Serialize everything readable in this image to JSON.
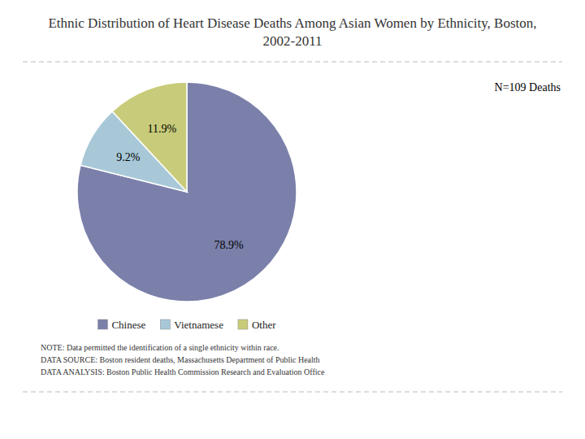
{
  "chart_data": {
    "type": "pie",
    "title": "Ethnic Distribution of Heart Disease Deaths Among Asian Women by Ethnicity, Boston, 2002-2011",
    "categories": [
      "Chinese",
      "Vietnamese",
      "Other"
    ],
    "values": [
      78.9,
      9.2,
      11.9
    ],
    "value_labels": [
      "78.9%",
      "9.2%",
      "11.9%"
    ],
    "colors": [
      "#7b80aa",
      "#a8c8d8",
      "#c8cc7a"
    ],
    "data_labels": true,
    "legend": "bottom",
    "annotations": [
      "N=109 Deaths",
      "NOTE: Data permitted the identification of a single ethnicity within race.",
      "DATA SOURCE: Boston resident deaths, Massachusetts Department of Public Health",
      "DATA ANALYSIS: Boston Public Health Commission Research and Evaluation Office"
    ]
  }
}
